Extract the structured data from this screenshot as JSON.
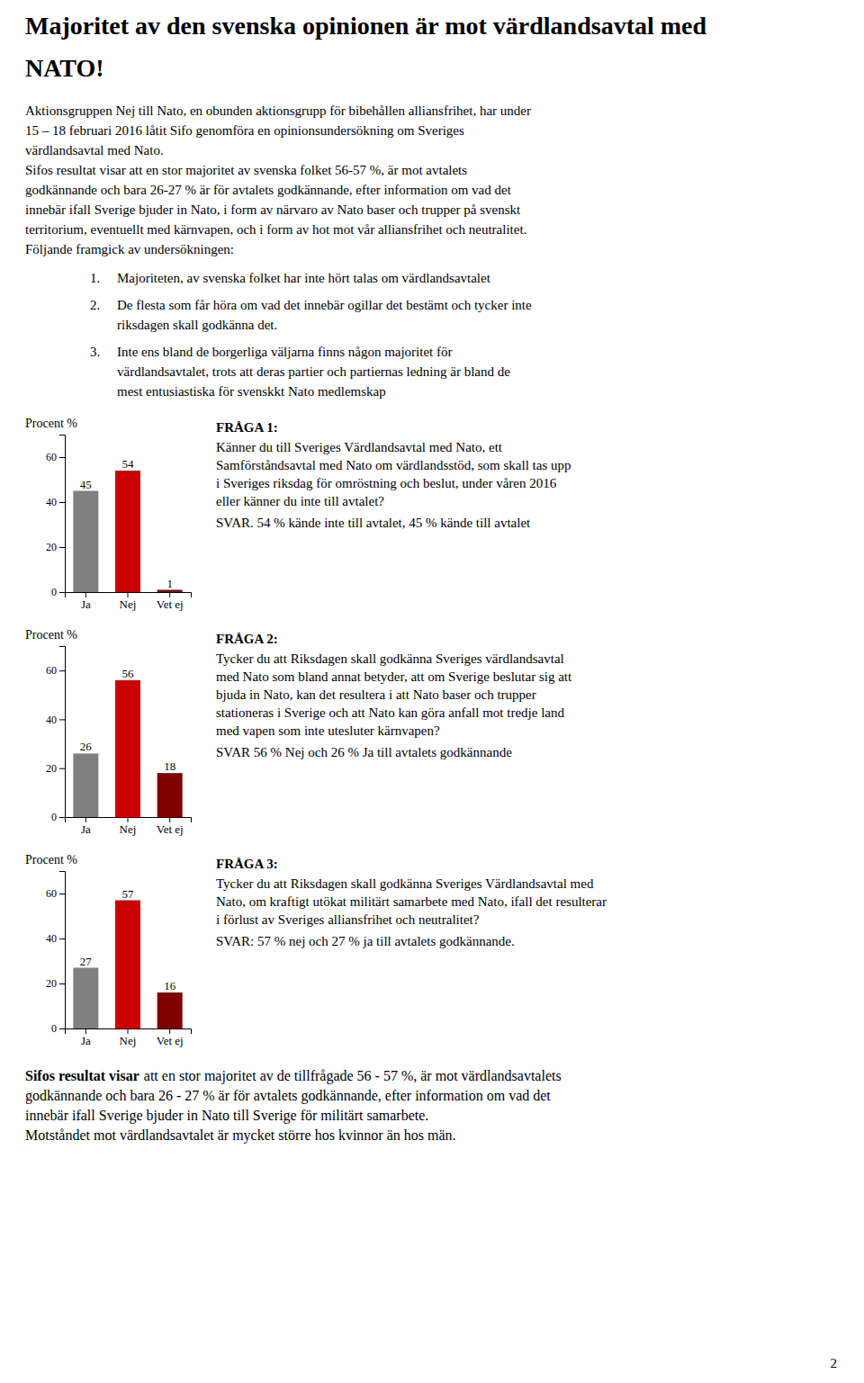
{
  "page": {
    "title": [
      "Majoritet av den svenska opinionen är mot värdlandsavtal med",
      "NATO!"
    ],
    "intro": [
      "Aktionsgruppen Nej till Nato, en obunden aktionsgrupp för bibehållen alliansfrihet, har under",
      "15 – 18 februari 2016 låtit Sifo genomföra en opinionsundersökning om Sveriges",
      "värdlandsavtal med Nato.",
      "Sifos resultat visar att en stor majoritet av svenska folket 56-57 %, är mot avtalets",
      "godkännande och bara 26-27 % är för avtalets godkännande, efter information om vad det",
      "innebär ifall Sverige bjuder in Nato, i form av närvaro av Nato baser och trupper på svenskt",
      "territorium, eventuellt med kärnvapen, och i form av hot mot vår alliansfrihet och neutralitet.",
      "Följande framgick av undersökningen:"
    ],
    "bullets": [
      {
        "number": "1.",
        "lines": [
          "Majoriteten, av svenska folket har inte hört talas om värdlandsavtalet"
        ]
      },
      {
        "number": "2.",
        "lines": [
          "De flesta som får höra om vad det innebär ogillar det bestämt och tycker inte",
          "riksdagen skall godkänna det."
        ]
      },
      {
        "number": "3.",
        "lines": [
          "Inte ens bland de borgerliga väljarna finns någon majoritet för",
          "värdlandsavtalet, trots att deras partier och partiernas ledning är bland de",
          "mest entusiastiska för svenskkt Nato medlemskap"
        ]
      }
    ],
    "footer_lead": "Sifos resultat visar",
    "footer": [
      "att en stor majoritet av de tillfrågade 56 - 57 %, är mot värdlandsavtalets",
      "godkännande och bara 26 - 27 % är för avtalets godkännande, efter information om vad det",
      "innebär ifall Sverige bjuder in Nato till Sverige för militärt samarbete.",
      "Motståndet mot värdlandsavtalet är mycket större hos kvinnor än hos män."
    ],
    "page_number": "2"
  },
  "chart_data": [
    {
      "type": "bar",
      "ylabel": "Procent %",
      "categories": [
        "Ja",
        "Nej",
        "Vet ej"
      ],
      "values": [
        45,
        54,
        1
      ],
      "colors": [
        "#808080",
        "#cc0000",
        "#800000"
      ],
      "ylim": [
        0,
        70
      ],
      "yticks": [
        0,
        20,
        40,
        60
      ],
      "data_labels": true,
      "annotations": {
        "title": "FRÅGA 1:",
        "text": [
          "Känner du till Sveriges Värdlandsavtal med Nato, ett",
          "Samförståndsavtal med Nato om värdlandsstöd, som skall tas upp",
          "i Sveriges riksdag för omröstning och beslut, under våren 2016",
          "eller känner du inte till avtalet?"
        ],
        "answer": "SVAR. 54 % kände inte till avtalet, 45 % kände till avtalet"
      }
    },
    {
      "type": "bar",
      "ylabel": "Procent %",
      "categories": [
        "Ja",
        "Nej",
        "Vet ej"
      ],
      "values": [
        26,
        56,
        18
      ],
      "colors": [
        "#808080",
        "#cc0000",
        "#800000"
      ],
      "ylim": [
        0,
        70
      ],
      "yticks": [
        0,
        20,
        40,
        60
      ],
      "data_labels": true,
      "annotations": {
        "title": "FRÅGA 2:",
        "text": [
          "Tycker du att Riksdagen skall godkänna Sveriges värdlandsavtal",
          "med Nato som bland annat betyder, att om Sverige beslutar sig att",
          "bjuda in Nato, kan det resultera i att Nato baser och trupper",
          "stationeras i Sverige och att Nato kan göra anfall mot tredje land",
          "med vapen som inte utesluter kärnvapen?"
        ],
        "answer": "SVAR  56 % Nej och 26 % Ja till avtalets godkännande"
      }
    },
    {
      "type": "bar",
      "ylabel": "Procent %",
      "categories": [
        "Ja",
        "Nej",
        "Vet ej"
      ],
      "values": [
        27,
        57,
        16
      ],
      "colors": [
        "#808080",
        "#cc0000",
        "#800000"
      ],
      "ylim": [
        0,
        70
      ],
      "yticks": [
        0,
        20,
        40,
        60
      ],
      "data_labels": true,
      "annotations": {
        "title": "FRÅGA 3:",
        "text": [
          "Tycker du att Riksdagen skall godkänna Sveriges Värdlandsavtal med",
          "Nato, om kraftigt utökat militärt samarbete med Nato, ifall det resulterar",
          "i förlust av Sveriges alliansfrihet och neutralitet?"
        ],
        "answer": "SVAR: 57 % nej och 27 % ja till avtalets godkännande."
      }
    }
  ]
}
